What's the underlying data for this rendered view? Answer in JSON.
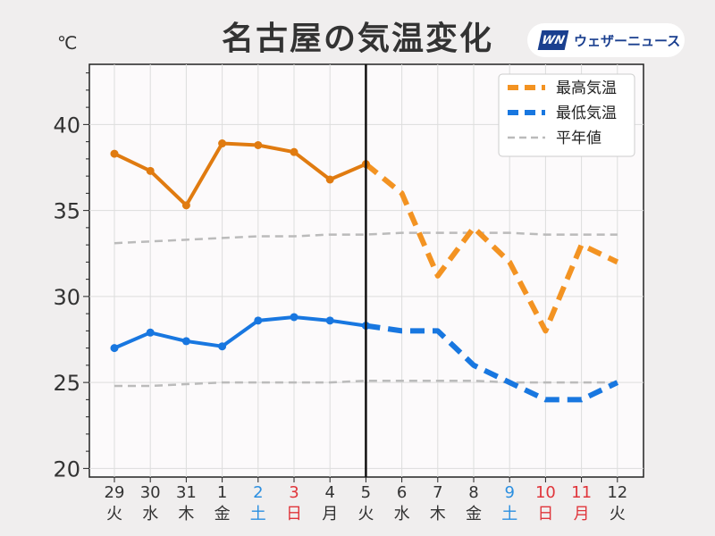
{
  "title": "名古屋の気温変化",
  "unit": "℃",
  "logo": {
    "mark": "WN",
    "text": "ウェザーニュース"
  },
  "colors": {
    "high": "#e07b10",
    "high_forecast": "#f39322",
    "low": "#1877e0",
    "normal": "#bbbbbb",
    "saturday": "#2b8fe0",
    "sunday_holiday": "#e0353b",
    "weekday": "#333333"
  },
  "chart_data": {
    "type": "line",
    "title": "名古屋の気温変化",
    "ylabel": "℃",
    "ylim": [
      19.5,
      43.5
    ],
    "yticks": [
      20,
      25,
      30,
      35,
      40
    ],
    "grid": true,
    "legend_position": "top-right",
    "categories": [
      {
        "date": "29",
        "dow": "火",
        "kind": "weekday"
      },
      {
        "date": "30",
        "dow": "水",
        "kind": "weekday"
      },
      {
        "date": "31",
        "dow": "木",
        "kind": "weekday"
      },
      {
        "date": "1",
        "dow": "金",
        "kind": "weekday"
      },
      {
        "date": "2",
        "dow": "土",
        "kind": "saturday"
      },
      {
        "date": "3",
        "dow": "日",
        "kind": "sunday"
      },
      {
        "date": "4",
        "dow": "月",
        "kind": "weekday"
      },
      {
        "date": "5",
        "dow": "火",
        "kind": "weekday"
      },
      {
        "date": "6",
        "dow": "水",
        "kind": "weekday"
      },
      {
        "date": "7",
        "dow": "木",
        "kind": "weekday"
      },
      {
        "date": "8",
        "dow": "金",
        "kind": "weekday"
      },
      {
        "date": "9",
        "dow": "土",
        "kind": "saturday"
      },
      {
        "date": "10",
        "dow": "日",
        "kind": "sunday"
      },
      {
        "date": "11",
        "dow": "月",
        "kind": "holiday"
      },
      {
        "date": "12",
        "dow": "火",
        "kind": "weekday"
      }
    ],
    "observed_until_index": 7,
    "series": [
      {
        "name": "最高気温",
        "key": "high",
        "values": [
          38.3,
          37.3,
          35.3,
          38.9,
          38.8,
          38.4,
          36.8,
          37.7,
          36.0,
          31.2,
          34.0,
          32.0,
          28.0,
          33.0,
          32.0
        ]
      },
      {
        "name": "最低気温",
        "key": "low",
        "values": [
          27.0,
          27.9,
          27.4,
          27.1,
          28.6,
          28.8,
          28.6,
          28.3,
          28.0,
          28.0,
          26.0,
          25.0,
          24.0,
          24.0,
          25.0
        ]
      },
      {
        "name": "平年値",
        "key": "normal_high",
        "values": [
          33.1,
          33.2,
          33.3,
          33.4,
          33.5,
          33.5,
          33.6,
          33.6,
          33.7,
          33.7,
          33.7,
          33.7,
          33.6,
          33.6,
          33.6
        ]
      },
      {
        "name": "",
        "key": "normal_low",
        "values": [
          24.8,
          24.8,
          24.9,
          25.0,
          25.0,
          25.0,
          25.0,
          25.1,
          25.1,
          25.1,
          25.1,
          25.0,
          25.0,
          25.0,
          25.0
        ]
      }
    ],
    "legend": [
      "最高気温",
      "最低気温",
      "平年値"
    ]
  }
}
